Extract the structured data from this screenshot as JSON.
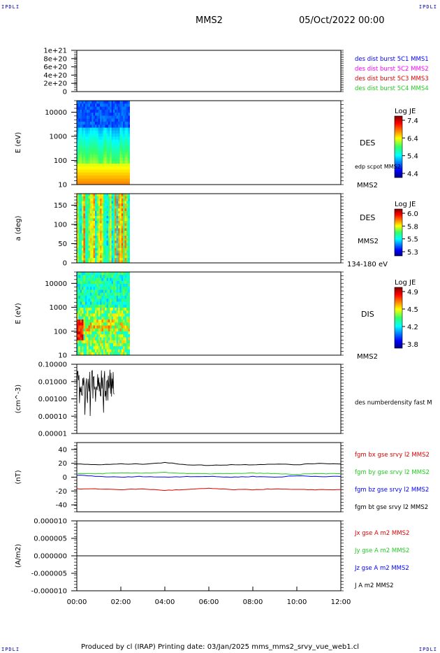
{
  "corners": {
    "tl": "IPDLI",
    "tr": "IPDLI",
    "bl": "IPDLI",
    "br": "IPDLI"
  },
  "header": {
    "spacecraft": "MMS2",
    "date": "05/Oct/2022 00:00"
  },
  "footer": {
    "text": "Produced by cl (IRAP)   Printing date: 03/Jan/2025   mms_mms2_srvy_vue_web1.cl"
  },
  "colors": {
    "mms1": "#0000ff",
    "mms2": "#ff00ff",
    "mms3": "#dd0000",
    "mms4": "#22cc22",
    "bx": "#dd0000",
    "by": "#22cc22",
    "bz": "#0000ff",
    "bt": "#000000"
  },
  "chart_data": [
    {
      "type": "line",
      "panel": "des-dist",
      "ylim": [
        0,
        1e+21
      ],
      "y_tick_labels": [
        "1e+21",
        "8e+20",
        "6e+20",
        "4e+20",
        "2e+20",
        "0"
      ],
      "legend": [
        {
          "label": "des dist burst 5C1 MMS1",
          "color": "#0000ff"
        },
        {
          "label": "des dist burst 5C2 MMS2",
          "color": "#ff00ff"
        },
        {
          "label": "des dist burst 5C3 MMS3",
          "color": "#dd0000"
        },
        {
          "label": "des dist burst 5C4 MMS4",
          "color": "#22cc22"
        }
      ]
    },
    {
      "type": "heatmap",
      "panel": "des-energy",
      "ylabel": "E (eV)",
      "yscale": "log",
      "ylim": [
        10,
        30000
      ],
      "y_tick_labels": [
        "10000",
        "1000",
        "100",
        "10"
      ],
      "right_labels": [
        "DES",
        "edp scpot MMS2",
        "MMS2"
      ],
      "colorbar": {
        "title": "Log JE",
        "ticks": [
          "7.4",
          "6.4",
          "5.4",
          "4.4"
        ]
      },
      "data_extent_hours": [
        0,
        2.4
      ]
    },
    {
      "type": "heatmap",
      "panel": "des-pitch",
      "ylabel": "a (deg)",
      "ylim": [
        0,
        180
      ],
      "y_tick_labels": [
        "150",
        "100",
        "50",
        "0"
      ],
      "right_labels": [
        "DES",
        "MMS2",
        "134-180 eV"
      ],
      "colorbar": {
        "title": "Log JE",
        "ticks": [
          "6.0",
          "5.8",
          "5.5",
          "5.3"
        ]
      },
      "data_extent_hours": [
        0,
        2.4
      ]
    },
    {
      "type": "heatmap",
      "panel": "dis-energy",
      "ylabel": "E (eV)",
      "yscale": "log",
      "ylim": [
        10,
        30000
      ],
      "y_tick_labels": [
        "10000",
        "1000",
        "100",
        "10"
      ],
      "right_labels": [
        "DIS",
        "MMS2"
      ],
      "colorbar": {
        "title": "Log JE",
        "ticks": [
          "4.9",
          "4.5",
          "4.2",
          "3.8"
        ]
      },
      "data_extent_hours": [
        0,
        2.4
      ]
    },
    {
      "type": "line",
      "panel": "density",
      "ylabel": "(cm^-3)",
      "yscale": "log",
      "ylim": [
        1e-05,
        0.1
      ],
      "y_tick_labels": [
        "0.10000",
        "0.01000",
        "0.00100",
        "0.00010",
        "0.00001"
      ],
      "legend": [
        {
          "label": "des numberdensity fast M",
          "color": "#000000"
        }
      ],
      "data_extent_hours": [
        0,
        1.7
      ]
    },
    {
      "type": "line",
      "panel": "fgm",
      "ylabel": "(nT)",
      "ylim": [
        -50,
        50
      ],
      "y_tick_labels": [
        "40",
        "20",
        "0",
        "-20",
        "-40"
      ],
      "x": [
        0,
        1,
        2,
        3,
        4,
        5,
        6,
        7,
        8,
        9,
        10,
        11,
        12
      ],
      "series": [
        {
          "name": "fgm bx gse srvy l2 MMS2",
          "color": "#dd0000",
          "values": [
            -17,
            -17,
            -18,
            -17,
            -19,
            -18,
            -16,
            -18,
            -18,
            -17,
            -18,
            -18,
            -18
          ]
        },
        {
          "name": "fgm by gse srvy l2 MMS2",
          "color": "#22cc22",
          "values": [
            5,
            5,
            6,
            6,
            7,
            5,
            5,
            5,
            6,
            5,
            4,
            5,
            5
          ]
        },
        {
          "name": "fgm bz gse srvy l2 MMS2",
          "color": "#0000ff",
          "values": [
            3,
            1,
            0,
            1,
            0,
            1,
            1,
            0,
            1,
            0,
            2,
            1,
            1
          ]
        },
        {
          "name": "fgm bt gse srvy l2 MMS2",
          "color": "#000000",
          "values": [
            19,
            18,
            19,
            19,
            21,
            18,
            17,
            18,
            18,
            19,
            18,
            20,
            19
          ]
        }
      ]
    },
    {
      "type": "line",
      "panel": "current",
      "ylabel": "(A/m2)",
      "ylim": [
        -1e-05,
        1e-05
      ],
      "y_tick_labels": [
        "0.000010",
        "0.000005",
        "0.000000",
        "-0.000005",
        "-0.000010"
      ],
      "legend": [
        {
          "label": "Jx gse A m2 MMS2",
          "color": "#dd0000"
        },
        {
          "label": "Jy gse A m2 MMS2",
          "color": "#22cc22"
        },
        {
          "label": "Jz gse A m2 MMS2",
          "color": "#0000ff"
        },
        {
          "label": "J A m2 MMS2",
          "color": "#000000"
        }
      ]
    }
  ],
  "x_axis": {
    "ticks": [
      "00:00",
      "02:00",
      "04:00",
      "06:00",
      "08:00",
      "10:00",
      "12:00"
    ],
    "range_hours": [
      0,
      12
    ]
  }
}
